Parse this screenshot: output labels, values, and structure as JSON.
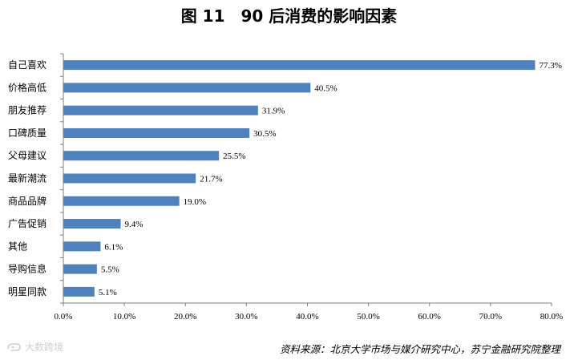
{
  "title": "图 11　90 后消费的影响因素",
  "source": "资料来源：北京大学市场与媒介研究中心，苏宁金融研究院整理",
  "watermark": "大数跨境",
  "colors": {
    "bar": "#4F81BD",
    "axis": "#7f7f7f"
  },
  "chart_data": {
    "type": "bar",
    "orientation": "horizontal",
    "categories": [
      "自己喜欢",
      "价格高低",
      "朋友推荐",
      "口碑质量",
      "父母建议",
      "最新潮流",
      "商品品牌",
      "广告促销",
      "其他",
      "导购信息",
      "明星同款"
    ],
    "values": [
      77.3,
      40.5,
      31.9,
      30.5,
      25.5,
      21.7,
      19.0,
      9.4,
      6.1,
      5.5,
      5.1
    ],
    "data_labels": [
      "77.3%",
      "40.5%",
      "31.9%",
      "30.5%",
      "25.5%",
      "21.7%",
      "19.0%",
      "9.4%",
      "6.1%",
      "5.5%",
      "5.1%"
    ],
    "xlim": [
      0,
      80
    ],
    "xticks": [
      0,
      10,
      20,
      30,
      40,
      50,
      60,
      70,
      80
    ],
    "xtick_labels": [
      "0.0%",
      "10.0%",
      "20.0%",
      "30.0%",
      "40.0%",
      "50.0%",
      "60.0%",
      "70.0%",
      "80.0%"
    ],
    "grid": false,
    "legend": "none"
  }
}
